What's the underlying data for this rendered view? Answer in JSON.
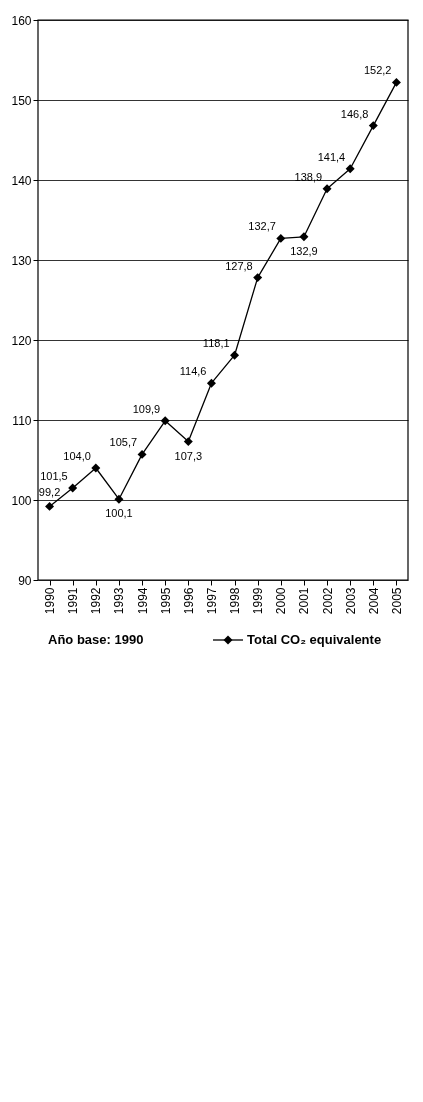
{
  "chart_data": {
    "type": "line",
    "categories": [
      "1990",
      "1991",
      "1992",
      "1993",
      "1994",
      "1995",
      "1996",
      "1997",
      "1998",
      "1999",
      "2000",
      "2001",
      "2002",
      "2003",
      "2004",
      "2005"
    ],
    "series": [
      {
        "name": "Total CO₂ equivalente",
        "color": "#000000",
        "values": [
          99.2,
          101.5,
          104.0,
          100.1,
          105.7,
          109.9,
          107.3,
          114.6,
          118.1,
          127.8,
          132.7,
          132.9,
          138.9,
          141.4,
          146.8,
          152.2
        ],
        "value_labels": [
          "99,2",
          "101,5",
          "104,0",
          "100,1",
          "105,7",
          "109,9",
          "107,3",
          "114,6",
          "118,1",
          "127,8",
          "132,7",
          "132,9",
          "138,9",
          "141,4",
          "146,8",
          "152,2"
        ]
      }
    ],
    "ylim": [
      90,
      160
    ],
    "yticks": [
      90,
      100,
      110,
      120,
      130,
      140,
      150,
      160
    ],
    "grid": "y",
    "marker": "diamond",
    "line_style": "solid",
    "legend": "bottom",
    "annotations": [
      "Año base: 1990"
    ]
  }
}
